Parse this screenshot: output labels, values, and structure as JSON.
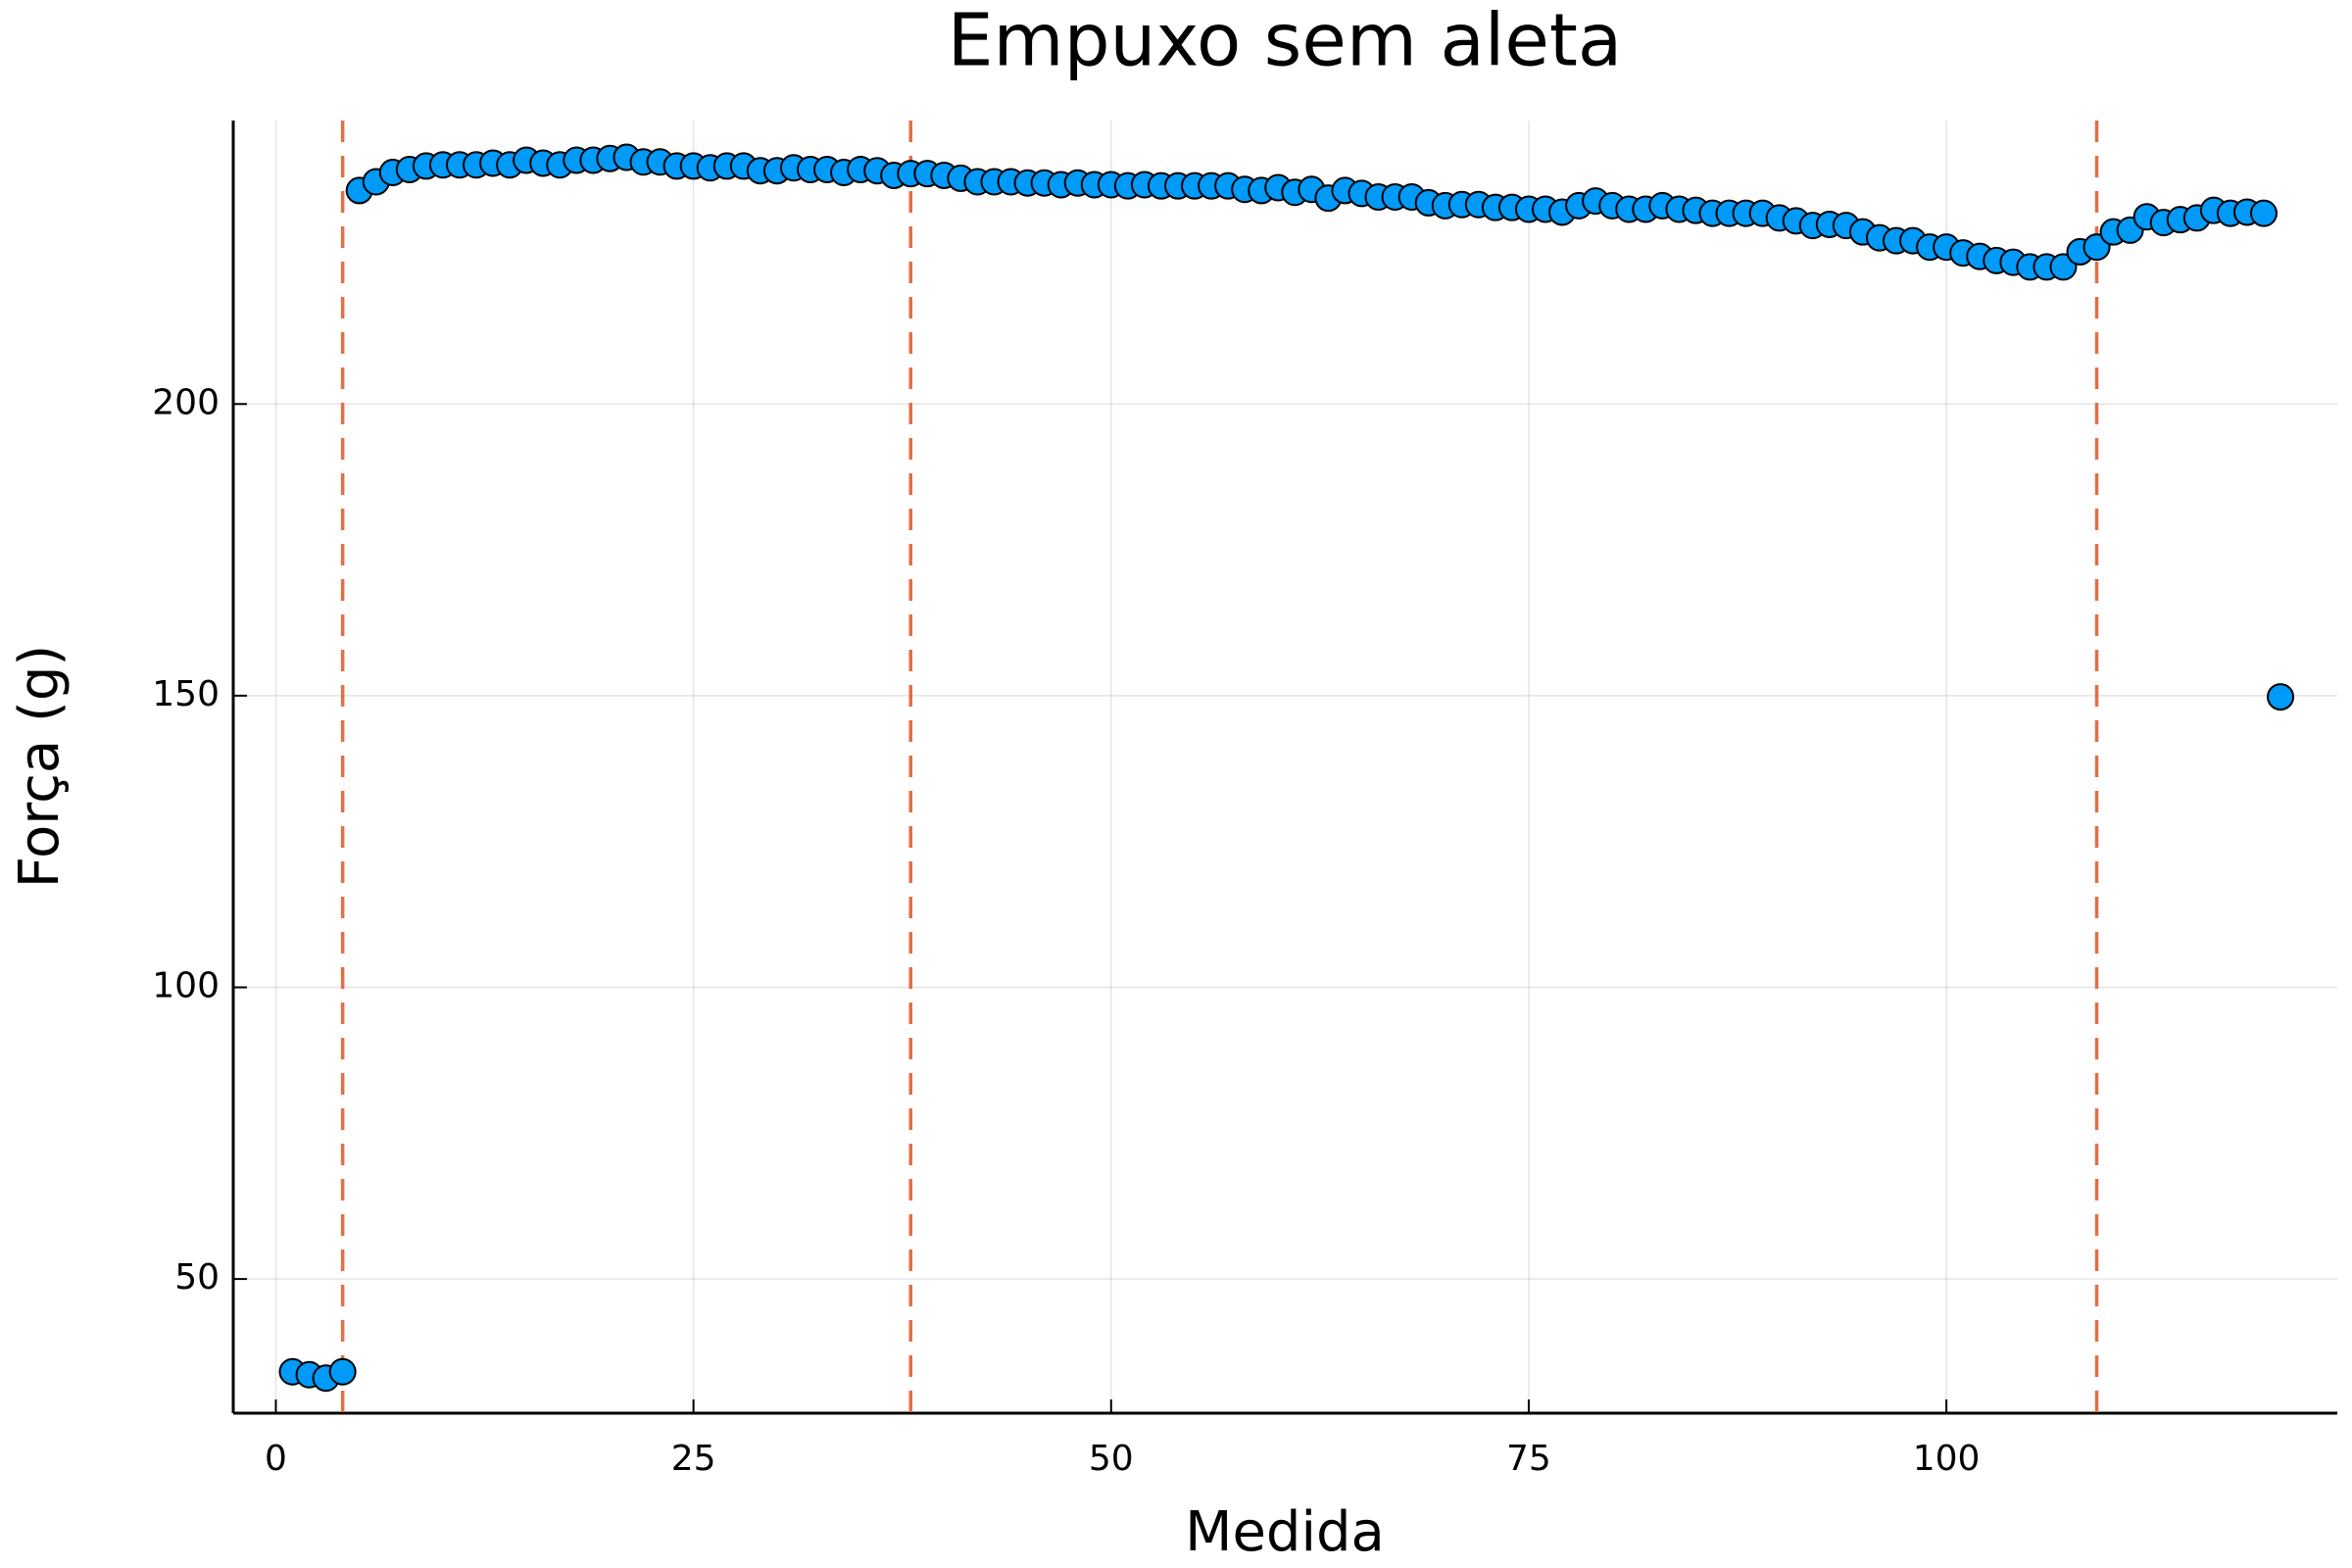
{
  "chart_data": {
    "type": "scatter",
    "title": "Empuxo sem aleta",
    "xlabel": "Medida",
    "ylabel": "Força (g)",
    "x": [
      1,
      2,
      3,
      4,
      5,
      6,
      7,
      8,
      9,
      10,
      11,
      12,
      13,
      14,
      15,
      16,
      17,
      18,
      19,
      20,
      21,
      22,
      23,
      24,
      25,
      26,
      27,
      28,
      29,
      30,
      31,
      32,
      33,
      34,
      35,
      36,
      37,
      38,
      39,
      40,
      41,
      42,
      43,
      44,
      45,
      46,
      47,
      48,
      49,
      50,
      51,
      52,
      53,
      54,
      55,
      56,
      57,
      58,
      59,
      60,
      61,
      62,
      63,
      64,
      65,
      66,
      67,
      68,
      69,
      70,
      71,
      72,
      73,
      74,
      75,
      76,
      77,
      78,
      79,
      80,
      81,
      82,
      83,
      84,
      85,
      86,
      87,
      88,
      89,
      90,
      91,
      92,
      93,
      94,
      95,
      96,
      97,
      98,
      99,
      100,
      101,
      102,
      103,
      104,
      105,
      106,
      107,
      108,
      109,
      110,
      111,
      112,
      113,
      114,
      115,
      116,
      117,
      118,
      119,
      120
    ],
    "values": [
      34.1,
      33.6,
      33.0,
      34.1,
      236.6,
      238.1,
      239.7,
      240.2,
      240.8,
      241.0,
      241.0,
      241.0,
      241.3,
      241.0,
      241.8,
      241.3,
      241.0,
      241.8,
      241.8,
      242.1,
      242.3,
      241.5,
      241.5,
      240.8,
      240.8,
      240.5,
      240.8,
      240.8,
      240.0,
      240.0,
      240.5,
      240.2,
      240.2,
      239.7,
      240.2,
      240.0,
      239.2,
      239.5,
      239.5,
      239.2,
      238.7,
      238.1,
      238.1,
      238.1,
      237.9,
      237.9,
      237.6,
      237.9,
      237.6,
      237.6,
      237.4,
      237.6,
      237.4,
      237.4,
      237.4,
      237.4,
      237.4,
      236.8,
      236.6,
      237.1,
      236.3,
      236.8,
      235.3,
      236.6,
      236.1,
      235.5,
      235.5,
      235.5,
      234.5,
      234.0,
      234.2,
      234.2,
      233.7,
      233.7,
      233.4,
      233.4,
      232.9,
      234.0,
      234.8,
      234.0,
      233.4,
      233.4,
      234.0,
      233.4,
      233.2,
      232.7,
      232.7,
      232.7,
      232.7,
      231.9,
      231.4,
      230.6,
      230.8,
      230.6,
      229.5,
      228.5,
      228.0,
      228.0,
      226.9,
      226.9,
      225.9,
      225.3,
      224.6,
      224.3,
      223.5,
      223.5,
      223.5,
      226.1,
      226.9,
      229.5,
      229.8,
      232.1,
      231.1,
      231.6,
      231.9,
      233.2,
      232.7,
      232.9,
      232.7,
      149.8
    ],
    "color": "#009af9",
    "vlines": [
      4,
      38,
      109
    ],
    "vline_color": "#e26f46",
    "xlim": [
      -2.55,
      123.4
    ],
    "xticks": [
      0,
      25,
      50,
      75,
      100
    ],
    "ylim": [
      27.0,
      248.6
    ],
    "yticks": [
      50,
      100,
      150,
      200
    ],
    "grid": true
  }
}
